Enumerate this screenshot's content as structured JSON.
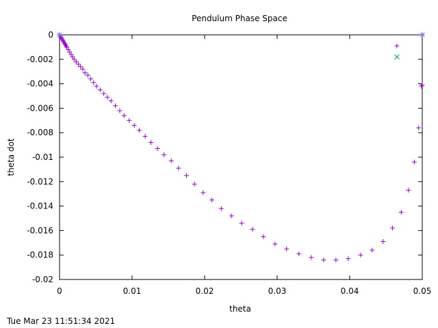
{
  "chart_data": {
    "type": "scatter",
    "title": "Pendulum Phase Space",
    "xlabel": "theta",
    "ylabel": "theta dot",
    "xlim": [
      0,
      0.05
    ],
    "ylim": [
      -0.02,
      0
    ],
    "xticks": [
      0,
      0.01,
      0.02,
      0.03,
      0.04,
      0.05
    ],
    "xtick_labels": [
      "0",
      "0.01",
      "0.02",
      "0.03",
      "0.04",
      "0.05"
    ],
    "yticks": [
      0,
      -0.002,
      -0.004,
      -0.006,
      -0.008,
      -0.01,
      -0.012,
      -0.014,
      -0.016,
      -0.018,
      -0.02
    ],
    "ytick_labels": [
      "0",
      "-0.002",
      "-0.004",
      "-0.006",
      "-0.008",
      "-0.01",
      "-0.012",
      "-0.014",
      "-0.016",
      "-0.018",
      "-0.02"
    ],
    "grid": false,
    "legend": "none",
    "series": [
      {
        "marker": "plus",
        "color": "#9400d3",
        "points": [
          [
            0.0,
            0.0
          ],
          [
            0.0001,
            -0.0001
          ],
          [
            0.0002,
            -0.0002
          ],
          [
            0.0003,
            -0.0003
          ],
          [
            0.0004,
            -0.0004
          ],
          [
            0.0005,
            -0.0005
          ],
          [
            0.0006,
            -0.0006
          ],
          [
            0.0007,
            -0.0007
          ],
          [
            0.0008,
            -0.0008
          ],
          [
            0.0009,
            -0.0009
          ],
          [
            0.001,
            -0.001
          ],
          [
            0.0012,
            -0.0012
          ],
          [
            0.0014,
            -0.0014
          ],
          [
            0.0016,
            -0.0016
          ],
          [
            0.0018,
            -0.0018
          ],
          [
            0.002,
            -0.002
          ],
          [
            0.0023,
            -0.0022
          ],
          [
            0.0026,
            -0.0024
          ],
          [
            0.0029,
            -0.0026
          ],
          [
            0.0032,
            -0.0028
          ],
          [
            0.0035,
            -0.0031
          ],
          [
            0.0039,
            -0.0033
          ],
          [
            0.0043,
            -0.0036
          ],
          [
            0.0047,
            -0.0039
          ],
          [
            0.0051,
            -0.0042
          ],
          [
            0.0056,
            -0.0045
          ],
          [
            0.0061,
            -0.0048
          ],
          [
            0.0066,
            -0.0051
          ],
          [
            0.0071,
            -0.0054
          ],
          [
            0.0077,
            -0.0058
          ],
          [
            0.0083,
            -0.0062
          ],
          [
            0.0089,
            -0.0066
          ],
          [
            0.0096,
            -0.007
          ],
          [
            0.0103,
            -0.0074
          ],
          [
            0.011,
            -0.0078
          ],
          [
            0.0118,
            -0.0083
          ],
          [
            0.0126,
            -0.0088
          ],
          [
            0.0135,
            -0.0093
          ],
          [
            0.0144,
            -0.0098
          ],
          [
            0.0154,
            -0.0103
          ],
          [
            0.0164,
            -0.0109
          ],
          [
            0.0175,
            -0.0115
          ],
          [
            0.0186,
            -0.0122
          ],
          [
            0.0198,
            -0.0129
          ],
          [
            0.021,
            -0.0135
          ],
          [
            0.0223,
            -0.0142
          ],
          [
            0.0237,
            -0.0148
          ],
          [
            0.0251,
            -0.0154
          ],
          [
            0.0266,
            -0.0159
          ],
          [
            0.0281,
            -0.0165
          ],
          [
            0.0297,
            -0.0171
          ],
          [
            0.0313,
            -0.0175
          ],
          [
            0.033,
            -0.0179
          ],
          [
            0.0347,
            -0.0182
          ],
          [
            0.0364,
            -0.0184
          ],
          [
            0.0381,
            -0.0184
          ],
          [
            0.0398,
            -0.0183
          ],
          [
            0.0415,
            -0.018
          ],
          [
            0.0431,
            -0.0176
          ],
          [
            0.0446,
            -0.0169
          ],
          [
            0.0459,
            -0.0158
          ],
          [
            0.0471,
            -0.0145
          ],
          [
            0.0481,
            -0.0127
          ],
          [
            0.0489,
            -0.0104
          ],
          [
            0.0495,
            -0.0076
          ],
          [
            0.0499,
            -0.0042
          ],
          [
            0.05,
            -0.0041
          ],
          [
            0.0465,
            -0.0009
          ],
          [
            0.05,
            0.0
          ]
        ]
      },
      {
        "marker": "cross",
        "color": "#009e73",
        "points": [
          [
            0.0465,
            -0.0018
          ]
        ]
      },
      {
        "marker": "cross",
        "color": "#56b4e9",
        "points": [
          [
            0.0,
            0.0
          ],
          [
            0.05,
            0.0
          ]
        ]
      }
    ]
  },
  "footer": {
    "timestamp": "Tue Mar 23 11:51:34 2021"
  }
}
